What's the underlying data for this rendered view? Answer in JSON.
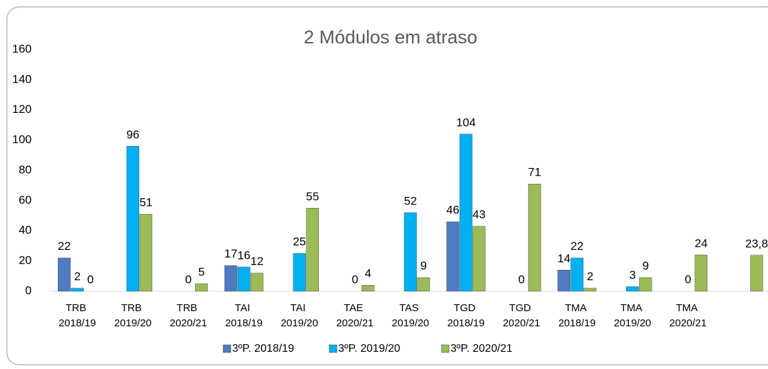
{
  "chart_data": {
    "type": "bar",
    "title": "2 Módulos em atraso",
    "categories": [
      "TRB 2018/19",
      "TRB 2019/20",
      "TRB 2020/21",
      "TAI 2018/19",
      "TAI 2019/20",
      "TAE 2020/21",
      "TAS 2019/20",
      "TGD 2018/19",
      "TGD 2020/21",
      "TMA 2018/19",
      "TMA 2019/20",
      "TMA 2020/21",
      null
    ],
    "series": [
      {
        "name": "3ºP. 2018/19",
        "color": "#4f7cc0",
        "values": [
          22,
          null,
          null,
          17,
          null,
          null,
          null,
          46,
          null,
          14,
          null,
          null,
          null
        ]
      },
      {
        "name": "3ºP. 2019/20",
        "color": "#00b0f0",
        "values": [
          2,
          96,
          0,
          16,
          25,
          0,
          52,
          104,
          0,
          22,
          3,
          0,
          null
        ]
      },
      {
        "name": "3ºP. 2020/21",
        "color": "#9bbb59",
        "values": [
          0,
          51,
          5,
          12,
          55,
          4,
          9,
          43,
          71,
          2,
          9,
          24,
          23.8
        ],
        "value_labels": [
          "0",
          "51",
          "5",
          "12",
          "55",
          "4",
          "9",
          "43",
          "71",
          "2",
          "9",
          "24",
          "23,8"
        ]
      }
    ],
    "ylim": [
      0,
      160
    ],
    "yticks": [
      0,
      20,
      40,
      60,
      80,
      100,
      120,
      140,
      160
    ],
    "grid": false,
    "legend": "bottom"
  }
}
